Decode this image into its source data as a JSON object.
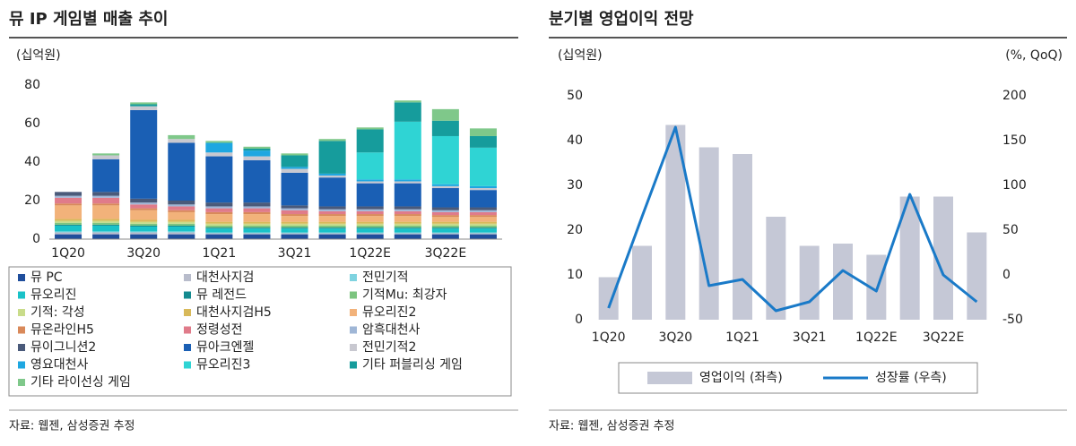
{
  "chart_data": [
    {
      "type": "stacked-bar",
      "title": "뮤 IP 게임별 매출 추이",
      "unit": "(십억원)",
      "source": "자료: 웹젠, 삼성증권 추정",
      "categories": [
        "1Q20",
        null,
        "3Q20",
        null,
        "1Q21",
        null,
        "3Q21",
        null,
        "1Q22E",
        null,
        "3Q22E",
        null
      ],
      "ylim": [
        0,
        80
      ],
      "yticks": [
        0,
        20,
        40,
        60,
        80
      ],
      "series": [
        {
          "name": "뮤 PC",
          "color": "#1f4e9c",
          "values": [
            2.5,
            2.5,
            2.5,
            2.5,
            2.5,
            2.5,
            2.5,
            2.5,
            2.5,
            2.5,
            2.5,
            2.5
          ]
        },
        {
          "name": "대천사지검",
          "color": "#b8bccb",
          "values": [
            1,
            1,
            1,
            1,
            0.5,
            0.5,
            0.5,
            0.5,
            0.5,
            0.5,
            0.5,
            0.5
          ]
        },
        {
          "name": "전민기적",
          "color": "#7fd3e0",
          "values": [
            0.5,
            0.5,
            0.5,
            0.5,
            0.5,
            0.5,
            0.5,
            0.5,
            0.5,
            0.5,
            0.5,
            0.5
          ]
        },
        {
          "name": "뮤오리진",
          "color": "#19c2c8",
          "values": [
            3,
            3,
            2.5,
            2.5,
            2,
            2,
            2,
            2,
            2,
            2,
            2,
            2
          ]
        },
        {
          "name": "뮤 레전드",
          "color": "#138a8f",
          "values": [
            0.5,
            0.5,
            0.5,
            0.5,
            0.5,
            0.5,
            0.5,
            0.5,
            0.5,
            0.5,
            0.5,
            0.5
          ]
        },
        {
          "name": "기적Mu: 최강자",
          "color": "#7cc47f",
          "values": [
            1,
            1,
            1,
            1,
            1,
            1,
            1,
            1,
            1,
            1,
            1,
            1
          ]
        },
        {
          "name": "기적: 각성",
          "color": "#c9dc8a",
          "values": [
            1,
            1,
            1,
            1,
            1,
            1,
            1,
            1,
            1,
            1,
            1,
            1
          ]
        },
        {
          "name": "대천사지검H5",
          "color": "#d8b95a",
          "values": [
            1,
            1,
            1,
            1,
            1,
            1,
            1,
            1,
            1,
            1,
            1,
            1
          ]
        },
        {
          "name": "뮤오리진2",
          "color": "#f2b27a",
          "values": [
            7,
            7,
            5,
            4,
            4,
            4,
            3,
            3,
            3,
            3,
            2.5,
            2.5
          ]
        },
        {
          "name": "뮤온라인H5",
          "color": "#d9895a",
          "values": [
            1,
            1,
            1,
            1,
            1,
            1,
            1,
            1,
            1,
            1,
            1,
            1
          ]
        },
        {
          "name": "정령성전",
          "color": "#e07b8a",
          "values": [
            3,
            3,
            2,
            2,
            2,
            2,
            2,
            1.5,
            1.5,
            1.5,
            1.5,
            1.5
          ]
        },
        {
          "name": "암흑대천사",
          "color": "#9fb6d6",
          "values": [
            1,
            1,
            1,
            1,
            1,
            1,
            1,
            1,
            1,
            1,
            1,
            1
          ]
        },
        {
          "name": "뮤이그니션2",
          "color": "#4a5a7a",
          "values": [
            2,
            2,
            2,
            2,
            2,
            2,
            1.5,
            1.5,
            1.5,
            1.5,
            1.5,
            1.5
          ]
        },
        {
          "name": "뮤아크엔젤",
          "color": "#1a5fb4",
          "values": [
            0,
            17,
            46,
            30,
            24,
            22,
            17,
            15,
            12,
            12,
            10,
            9
          ]
        },
        {
          "name": "전민기적2",
          "color": "#c8c8d0",
          "values": [
            0,
            2,
            2,
            2,
            2,
            2,
            2,
            1,
            1,
            1,
            1,
            1
          ]
        },
        {
          "name": "영요대천사",
          "color": "#1ea7e1",
          "values": [
            0,
            0,
            0,
            0,
            5,
            3,
            1,
            1,
            1,
            1,
            1,
            1
          ]
        },
        {
          "name": "뮤오리진3",
          "color": "#2fd4d4",
          "values": [
            0,
            0,
            0,
            0,
            0,
            0,
            0,
            0,
            14,
            30,
            25,
            20
          ]
        },
        {
          "name": "기타 퍼블리싱 게임",
          "color": "#169c9c",
          "values": [
            0,
            0,
            1,
            0,
            0,
            1,
            6,
            17,
            12,
            10,
            8,
            6
          ]
        },
        {
          "name": "기타 라이선싱 게임",
          "color": "#7fc88a",
          "values": [
            0,
            1,
            1,
            2,
            1,
            1,
            1,
            1,
            1,
            1,
            6,
            4
          ]
        }
      ]
    },
    {
      "type": "bar-line",
      "title": "분기별 영업이익 전망",
      "unit": "(십억원)",
      "y2_unit": "(%, QoQ)",
      "source": "자료: 웹젠, 삼성증권 추정",
      "categories": [
        "1Q20",
        null,
        "3Q20",
        null,
        "1Q21",
        null,
        "3Q21",
        null,
        "1Q22E",
        null,
        "3Q22E",
        null
      ],
      "ylim": [
        0,
        50
      ],
      "yticks": [
        0,
        10,
        20,
        30,
        40,
        50
      ],
      "y2lim": [
        -50,
        200
      ],
      "y2ticks": [
        -50,
        0,
        50,
        100,
        150,
        200
      ],
      "series": [
        {
          "name": "영업이익 (좌측)",
          "color": "#c5c8d6",
          "values": [
            9.5,
            16.5,
            43.5,
            38.5,
            37,
            23,
            16.5,
            17,
            14.5,
            27.5,
            27.5,
            19.5
          ]
        },
        {
          "name": "성장률 (우측)",
          "color": "#1a7ac8",
          "axis": "y2",
          "values": [
            -37,
            65,
            165,
            -12,
            -5,
            -40,
            -30,
            5,
            -18,
            90,
            0,
            -30
          ]
        }
      ]
    }
  ]
}
